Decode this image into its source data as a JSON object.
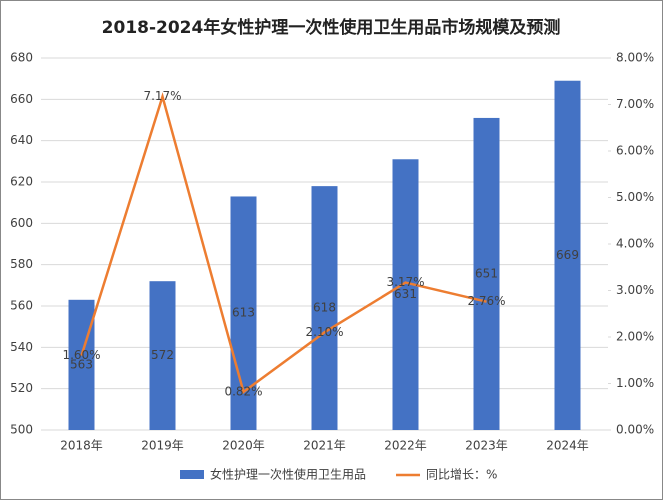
{
  "chart_data": {
    "type": "bar-line",
    "title": "2018-2024年女性护理一次性使用卫生用品市场规模及预测",
    "categories": [
      "2018年",
      "2019年",
      "2020年",
      "2021年",
      "2022年",
      "2023年",
      "2024年"
    ],
    "series": [
      {
        "name": "女性护理一次性使用卫生用品",
        "type": "bar",
        "color": "#4472c4",
        "values": [
          563,
          572,
          613,
          618,
          631,
          651,
          669
        ]
      },
      {
        "name": "同比增长：%",
        "type": "line",
        "axis": "y2",
        "color": "#ed7d31",
        "values": [
          1.6,
          7.17,
          0.82,
          2.1,
          3.17,
          2.76,
          null
        ],
        "value_labels": [
          "1.60%",
          "7.17%",
          "0.82%",
          "2.10%",
          "3.17%",
          "2.76%",
          null
        ]
      }
    ],
    "ylim": [
      500,
      680
    ],
    "yticks": [
      500,
      520,
      540,
      560,
      580,
      600,
      620,
      640,
      660,
      680
    ],
    "y2lim": [
      0,
      8
    ],
    "y2ticks": [
      {
        "value": 0,
        "label": "0.00%"
      },
      {
        "value": 1,
        "label": "1.00%"
      },
      {
        "value": 2,
        "label": "2.00%"
      },
      {
        "value": 3,
        "label": "3.00%"
      },
      {
        "value": 4,
        "label": "4.00%"
      },
      {
        "value": 5,
        "label": "5.00%"
      },
      {
        "value": 6,
        "label": "6.00%"
      },
      {
        "value": 7,
        "label": "7.00%"
      },
      {
        "value": 8,
        "label": "8.00%"
      }
    ],
    "grid": true,
    "legend": "bottom"
  }
}
